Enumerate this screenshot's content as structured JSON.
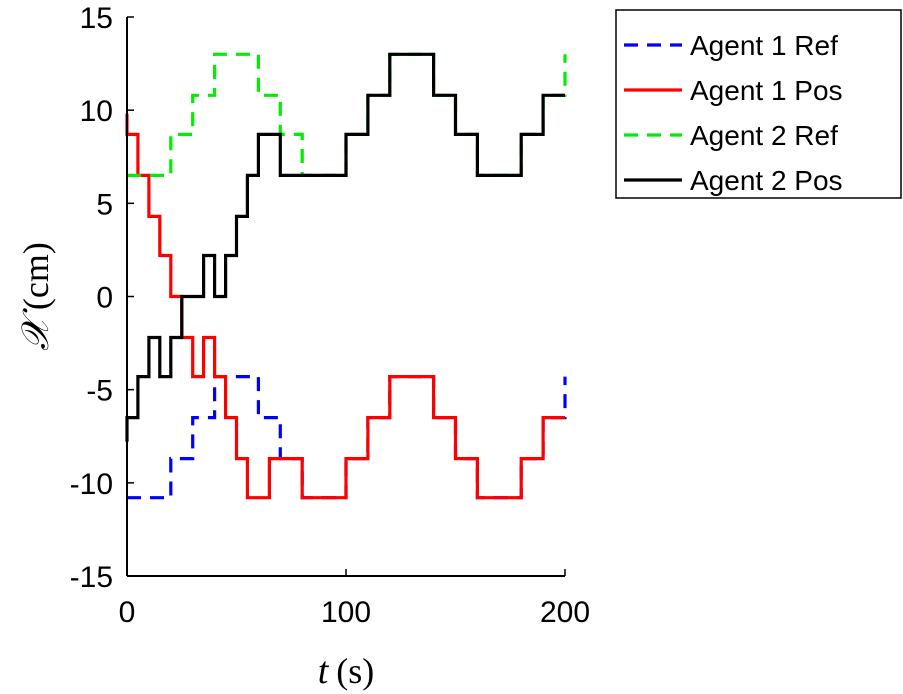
{
  "chart_data": {
    "type": "line",
    "xlabel_symbol": "t",
    "xlabel_unit": "(s)",
    "ylabel_symbol": "𝒳",
    "ylabel_unit": "(cm)",
    "xlim": [
      0,
      200
    ],
    "ylim": [
      -15,
      15
    ],
    "x_ticks": [
      0,
      100,
      200
    ],
    "x_tick_labels": [
      "0",
      "100",
      "200"
    ],
    "y_ticks": [
      -15,
      -10,
      -5,
      0,
      5,
      10,
      15
    ],
    "y_tick_labels": [
      "-15",
      "-10",
      "-5",
      "0",
      "5",
      "10",
      "15"
    ],
    "grid": false,
    "legend_position": "outside-top-right",
    "series": [
      {
        "name": "Agent 1 Ref",
        "color": "#0000ff",
        "style": "dashed",
        "x": [
          0,
          20,
          20,
          30,
          30,
          40,
          40,
          60,
          60,
          70,
          70,
          80,
          80,
          100,
          100,
          110,
          110,
          120,
          120,
          140,
          140,
          150,
          150,
          160,
          160,
          180,
          180,
          190,
          190,
          200,
          200
        ],
        "y": [
          -10.8,
          -10.8,
          -8.7,
          -8.7,
          -6.5,
          -6.5,
          -4.3,
          -4.3,
          -6.5,
          -6.5,
          -8.7,
          -8.7,
          -10.8,
          -10.8,
          -8.7,
          -8.7,
          -6.5,
          -6.5,
          -4.3,
          -4.3,
          -6.5,
          -6.5,
          -8.7,
          -8.7,
          -10.8,
          -10.8,
          -8.7,
          -8.7,
          -6.5,
          -6.5,
          -4.3
        ]
      },
      {
        "name": "Agent 1 Pos",
        "color": "#ff0000",
        "style": "solid",
        "x": [
          0,
          0,
          5,
          5,
          10,
          10,
          15,
          15,
          20,
          20,
          25,
          25,
          30,
          30,
          35,
          35,
          40,
          40,
          45,
          45,
          50,
          50,
          55,
          55,
          60,
          60,
          65,
          65,
          70,
          70,
          80,
          80,
          100,
          100,
          110,
          110,
          120,
          120,
          140,
          140,
          150,
          150,
          160,
          160,
          180,
          180,
          190,
          190,
          200
        ],
        "y": [
          9.8,
          8.7,
          8.7,
          6.5,
          6.5,
          4.3,
          4.3,
          2.2,
          2.2,
          0.0,
          0.0,
          -2.2,
          -2.2,
          -4.3,
          -4.3,
          -2.2,
          -2.2,
          -4.3,
          -4.3,
          -6.5,
          -6.5,
          -8.7,
          -8.7,
          -10.8,
          -10.8,
          -10.8,
          -10.8,
          -8.7,
          -8.7,
          -8.7,
          -8.7,
          -10.8,
          -10.8,
          -8.7,
          -8.7,
          -6.5,
          -6.5,
          -4.3,
          -4.3,
          -6.5,
          -6.5,
          -8.7,
          -8.7,
          -10.8,
          -10.8,
          -8.7,
          -8.7,
          -6.5,
          -6.5
        ]
      },
      {
        "name": "Agent 2 Ref",
        "color": "#00ee00",
        "style": "dashed",
        "x": [
          0,
          20,
          20,
          30,
          30,
          40,
          40,
          60,
          60,
          70,
          70,
          80,
          80,
          100,
          100,
          110,
          110,
          120,
          120,
          140,
          140,
          150,
          150,
          160,
          160,
          180,
          180,
          190,
          190,
          200,
          200
        ],
        "y": [
          6.5,
          6.5,
          8.7,
          8.7,
          10.8,
          10.8,
          13.0,
          13.0,
          10.8,
          10.8,
          8.7,
          8.7,
          6.5,
          6.5,
          8.7,
          8.7,
          10.8,
          10.8,
          13.0,
          13.0,
          10.8,
          10.8,
          8.7,
          8.7,
          6.5,
          6.5,
          8.7,
          8.7,
          10.8,
          10.8,
          13.0
        ]
      },
      {
        "name": "Agent 2 Pos",
        "color": "#000000",
        "style": "solid",
        "x": [
          0,
          0,
          5,
          5,
          10,
          10,
          15,
          15,
          20,
          20,
          25,
          25,
          30,
          30,
          35,
          35,
          40,
          40,
          45,
          45,
          50,
          50,
          55,
          55,
          60,
          60,
          70,
          70,
          100,
          100,
          110,
          110,
          120,
          120,
          140,
          140,
          150,
          150,
          160,
          160,
          180,
          180,
          190,
          190,
          200
        ],
        "y": [
          -7.8,
          -6.5,
          -6.5,
          -4.3,
          -4.3,
          -2.2,
          -2.2,
          -4.3,
          -4.3,
          -2.2,
          -2.2,
          0.0,
          0.0,
          0.0,
          0.0,
          2.2,
          2.2,
          0.0,
          0.0,
          2.2,
          2.2,
          4.3,
          4.3,
          6.5,
          6.5,
          8.7,
          8.7,
          6.5,
          6.5,
          8.7,
          8.7,
          10.8,
          10.8,
          13.0,
          13.0,
          10.8,
          10.8,
          8.7,
          8.7,
          6.5,
          6.5,
          8.7,
          8.7,
          10.8,
          10.8
        ]
      }
    ]
  }
}
